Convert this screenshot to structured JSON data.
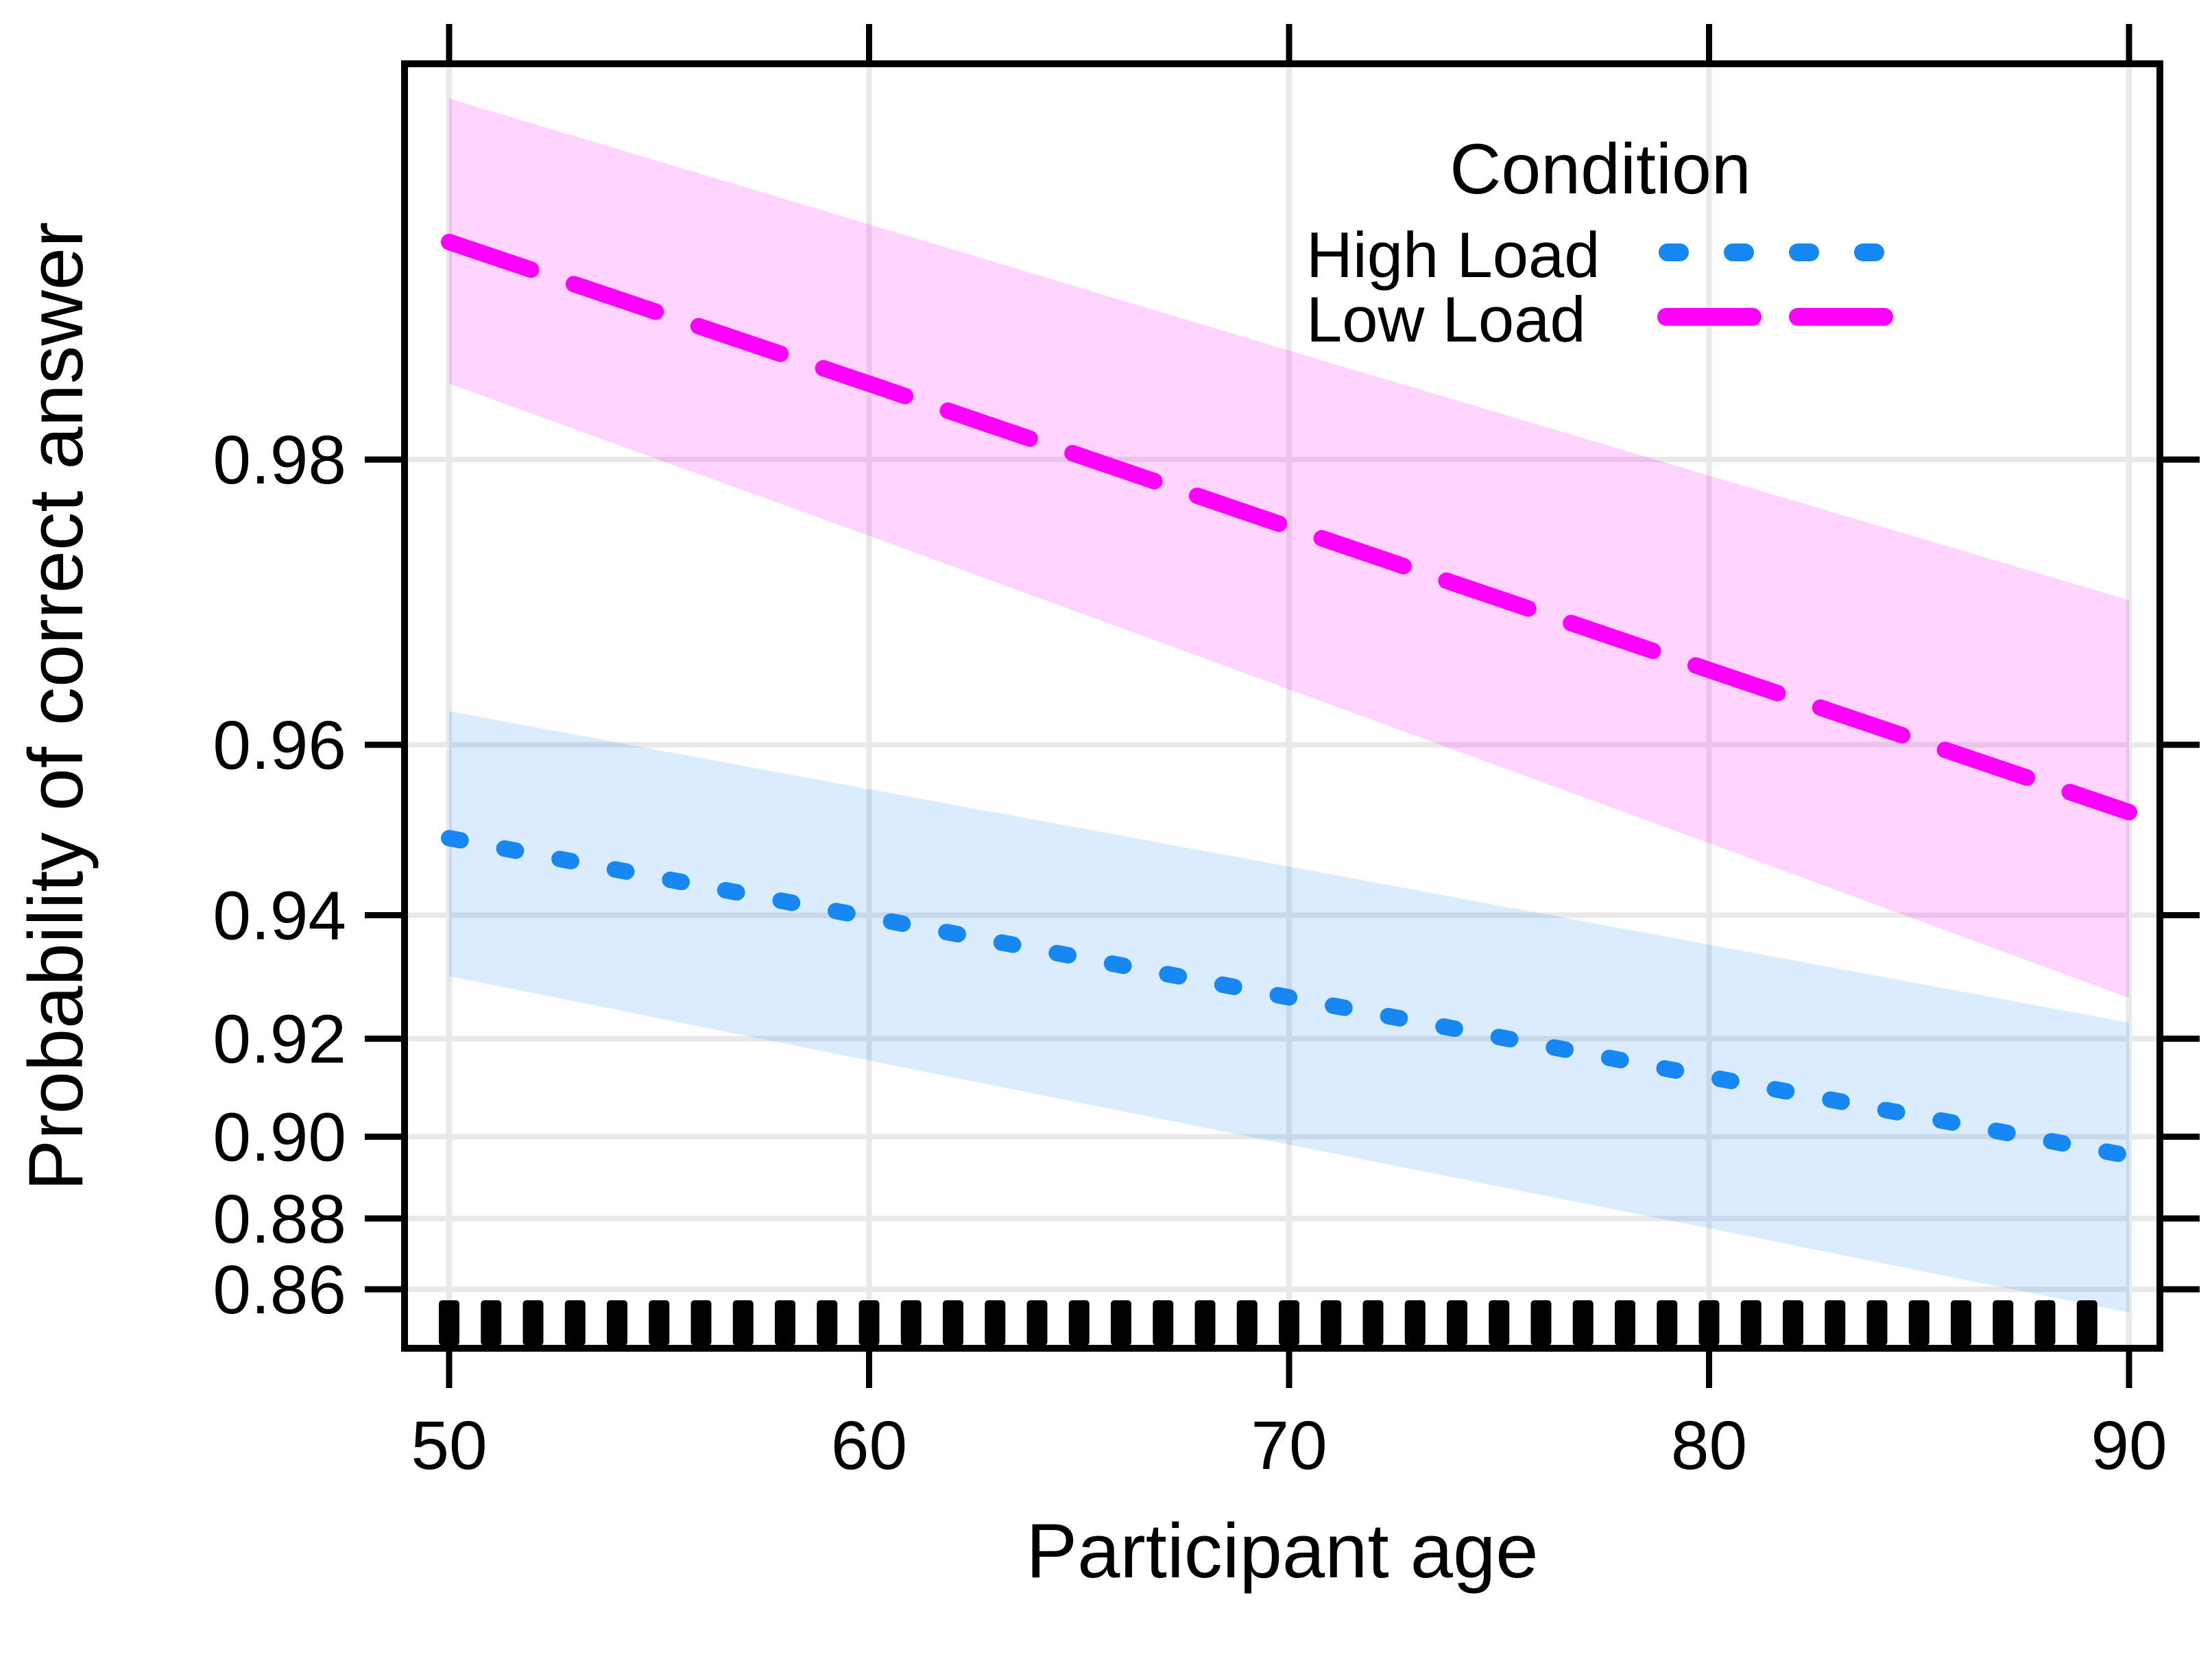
{
  "chart_data": {
    "type": "line",
    "title": "",
    "xlabel": "Participant age",
    "ylabel": "Probability of correct answer",
    "y_scale": "logit",
    "x_ticks": [
      50,
      60,
      70,
      80,
      90
    ],
    "x_tick_labels": [
      "50",
      "60",
      "70",
      "80",
      "90"
    ],
    "y_ticks": [
      0.86,
      0.88,
      0.9,
      0.92,
      0.94,
      0.96,
      0.98
    ],
    "y_tick_labels": [
      "0.86",
      "0.88",
      "0.90",
      "0.92",
      "0.94",
      "0.96",
      "0.98"
    ],
    "xlim": [
      48.9,
      90.7
    ],
    "ylim": [
      0.842,
      0.992
    ],
    "grid": true,
    "legend": {
      "title": "Condition",
      "position": "top-right"
    },
    "x": [
      50,
      60,
      70,
      80,
      90
    ],
    "series": [
      {
        "name": "High Load",
        "color": "#1787F4",
        "band_color": "#1787F4",
        "line_style": "dotted",
        "fit": [
          0.95,
          0.9397,
          0.9273,
          0.9127,
          0.8956
        ],
        "upper": [
          0.9631,
          0.9555,
          0.9465,
          0.9357,
          0.9229
        ],
        "lower": [
          0.9308,
          0.9159,
          0.8982,
          0.8774,
          0.8528
        ]
      },
      {
        "name": "Low Load",
        "color": "#FF00FF",
        "band_color": "#FF00FF",
        "line_style": "dashed",
        "fit": [
          0.9883,
          0.9834,
          0.9764,
          0.9666,
          0.953
        ],
        "upper": [
          0.9918,
          0.9888,
          0.9847,
          0.9792,
          0.9718
        ],
        "lower": [
          0.9834,
          0.9759,
          0.965,
          0.9494,
          0.9272
        ]
      }
    ],
    "rug_ages": [
      50,
      51,
      52,
      53,
      54,
      55,
      56,
      57,
      58,
      59,
      60,
      61,
      62,
      63,
      64,
      65,
      66,
      67,
      68,
      69,
      70,
      71,
      72,
      73,
      74,
      75,
      76,
      77,
      78,
      79,
      80,
      81,
      82,
      83,
      84,
      85,
      86,
      87,
      88,
      89
    ],
    "grid_color": "#E9E9E9",
    "rug_color": "#000000",
    "text_color": "#000000"
  }
}
